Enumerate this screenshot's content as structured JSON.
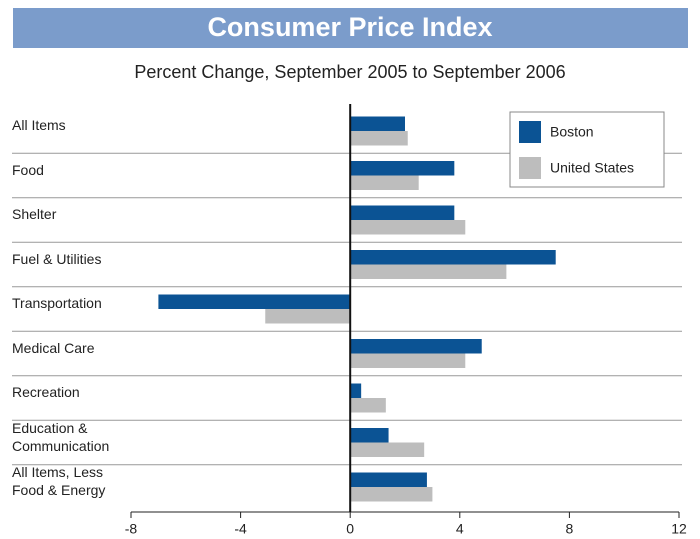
{
  "chart_data": {
    "type": "barh",
    "title": "Consumer Price Index",
    "subtitle": "Percent Change, September 2005 to September 2006",
    "categories": [
      "All Items",
      "Food",
      "Shelter",
      "Fuel & Utilities",
      "Transportation",
      "Medical Care",
      "Recreation",
      "Education &\nCommunication",
      "All Items, Less\nFood & Energy"
    ],
    "series": [
      {
        "name": "Boston",
        "color": "#0b5394",
        "values": [
          2.0,
          3.8,
          3.8,
          7.5,
          -7.0,
          4.8,
          0.4,
          1.4,
          2.8
        ]
      },
      {
        "name": "United States",
        "color": "#bdbdbd",
        "values": [
          2.1,
          2.5,
          4.2,
          5.7,
          -3.1,
          4.2,
          1.3,
          2.7,
          3.0
        ]
      }
    ],
    "xlim": [
      -8,
      12
    ],
    "xticks": [
      -8,
      -4,
      0,
      4,
      8,
      12
    ],
    "legend": "upper right"
  }
}
